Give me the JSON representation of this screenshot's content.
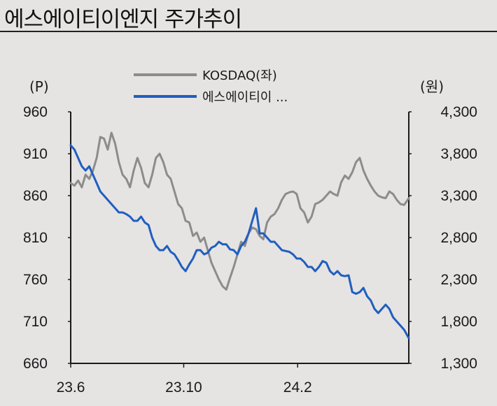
{
  "title": "에스에이티이엔지 주가추이",
  "chart_data": {
    "type": "line",
    "left_unit": "(P)",
    "right_unit": "(원)",
    "x_ticks": [
      "23.6",
      "23.10",
      "24.2"
    ],
    "left_ticks": [
      "960",
      "910",
      "860",
      "810",
      "760",
      "710",
      "660"
    ],
    "right_ticks": [
      "4,300",
      "3,800",
      "3,300",
      "2,800",
      "2,300",
      "1,800",
      "1,300"
    ],
    "left_range": [
      660,
      960
    ],
    "right_range": [
      1300,
      4300
    ],
    "x_range": [
      "2023-06-01",
      "2024-05-31"
    ],
    "x_tick_dates": [
      "2023-06-01",
      "2023-10-01",
      "2024-02-01"
    ],
    "legend_position": "top-center",
    "grid": false,
    "series": [
      {
        "name": "KOSDAQ(좌)",
        "axis": "left",
        "color": "#8c8c8c",
        "x": [
          "2023-06-01",
          "2023-06-05",
          "2023-06-09",
          "2023-06-13",
          "2023-06-17",
          "2023-06-21",
          "2023-06-25",
          "2023-06-29",
          "2023-07-03",
          "2023-07-07",
          "2023-07-11",
          "2023-07-15",
          "2023-07-19",
          "2023-07-23",
          "2023-07-27",
          "2023-07-31",
          "2023-08-04",
          "2023-08-08",
          "2023-08-12",
          "2023-08-16",
          "2023-08-20",
          "2023-08-24",
          "2023-08-28",
          "2023-09-01",
          "2023-09-05",
          "2023-09-09",
          "2023-09-13",
          "2023-09-17",
          "2023-09-21",
          "2023-09-25",
          "2023-09-29",
          "2023-10-03",
          "2023-10-07",
          "2023-10-11",
          "2023-10-15",
          "2023-10-19",
          "2023-10-23",
          "2023-10-27",
          "2023-10-31",
          "2023-11-04",
          "2023-11-08",
          "2023-11-12",
          "2023-11-16",
          "2023-11-20",
          "2023-11-24",
          "2023-11-28",
          "2023-12-02",
          "2023-12-06",
          "2023-12-10",
          "2023-12-14",
          "2023-12-18",
          "2023-12-22",
          "2023-12-26",
          "2023-12-30",
          "2024-01-03",
          "2024-01-07",
          "2024-01-11",
          "2024-01-15",
          "2024-01-19",
          "2024-01-23",
          "2024-01-27",
          "2024-01-31",
          "2024-02-04",
          "2024-02-08",
          "2024-02-12",
          "2024-02-16",
          "2024-02-20",
          "2024-02-24",
          "2024-02-28",
          "2024-03-03",
          "2024-03-07",
          "2024-03-11",
          "2024-03-15",
          "2024-03-19",
          "2024-03-23",
          "2024-03-27",
          "2024-03-31",
          "2024-04-04",
          "2024-04-08",
          "2024-04-12",
          "2024-04-16",
          "2024-04-20",
          "2024-04-24",
          "2024-04-28",
          "2024-05-02",
          "2024-05-06",
          "2024-05-10",
          "2024-05-14",
          "2024-05-18",
          "2024-05-22",
          "2024-05-26",
          "2024-05-31"
        ],
        "values": [
          875,
          872,
          878,
          870,
          885,
          880,
          890,
          905,
          930,
          928,
          915,
          935,
          922,
          900,
          885,
          880,
          870,
          890,
          905,
          893,
          875,
          870,
          885,
          905,
          910,
          900,
          885,
          880,
          865,
          850,
          845,
          830,
          828,
          812,
          816,
          805,
          810,
          795,
          780,
          770,
          760,
          752,
          748,
          762,
          775,
          790,
          805,
          800,
          815,
          822,
          820,
          812,
          808,
          828,
          835,
          838,
          845,
          855,
          862,
          864,
          865,
          862,
          845,
          840,
          828,
          835,
          850,
          852,
          855,
          860,
          865,
          862,
          860,
          876,
          884,
          880,
          888,
          900,
          905,
          890,
          880,
          872,
          865,
          860,
          858,
          857,
          865,
          862,
          855,
          850,
          849,
          857
        ]
      },
      {
        "name": "에스에이티이 ...",
        "axis": "right",
        "color": "#1f5fbf",
        "x": [
          "2023-06-01",
          "2023-06-05",
          "2023-06-09",
          "2023-06-13",
          "2023-06-17",
          "2023-06-21",
          "2023-06-25",
          "2023-06-29",
          "2023-07-03",
          "2023-07-07",
          "2023-07-11",
          "2023-07-15",
          "2023-07-19",
          "2023-07-23",
          "2023-07-27",
          "2023-07-31",
          "2023-08-04",
          "2023-08-08",
          "2023-08-12",
          "2023-08-16",
          "2023-08-20",
          "2023-08-24",
          "2023-08-28",
          "2023-09-01",
          "2023-09-05",
          "2023-09-09",
          "2023-09-13",
          "2023-09-17",
          "2023-09-21",
          "2023-09-25",
          "2023-09-29",
          "2023-10-03",
          "2023-10-07",
          "2023-10-11",
          "2023-10-15",
          "2023-10-19",
          "2023-10-23",
          "2023-10-27",
          "2023-10-31",
          "2023-11-04",
          "2023-11-08",
          "2023-11-12",
          "2023-11-16",
          "2023-11-20",
          "2023-11-24",
          "2023-11-28",
          "2023-12-02",
          "2023-12-06",
          "2023-12-10",
          "2023-12-14",
          "2023-12-18",
          "2023-12-22",
          "2023-12-26",
          "2023-12-30",
          "2024-01-03",
          "2024-01-07",
          "2024-01-11",
          "2024-01-15",
          "2024-01-19",
          "2024-01-23",
          "2024-01-27",
          "2024-01-31",
          "2024-02-04",
          "2024-02-08",
          "2024-02-12",
          "2024-02-16",
          "2024-02-20",
          "2024-02-24",
          "2024-02-28",
          "2024-03-03",
          "2024-03-07",
          "2024-03-11",
          "2024-03-15",
          "2024-03-19",
          "2024-03-23",
          "2024-03-27",
          "2024-03-31",
          "2024-04-04",
          "2024-04-08",
          "2024-04-12",
          "2024-04-16",
          "2024-04-20",
          "2024-04-24",
          "2024-04-28",
          "2024-05-02",
          "2024-05-06",
          "2024-05-10",
          "2024-05-14",
          "2024-05-18",
          "2024-05-22",
          "2024-05-26",
          "2024-05-31"
        ],
        "values": [
          3900,
          3850,
          3750,
          3650,
          3600,
          3650,
          3550,
          3450,
          3350,
          3300,
          3250,
          3200,
          3150,
          3100,
          3100,
          3080,
          3050,
          3000,
          3000,
          3050,
          2980,
          2950,
          2800,
          2700,
          2650,
          2650,
          2700,
          2630,
          2600,
          2530,
          2450,
          2400,
          2480,
          2550,
          2650,
          2650,
          2600,
          2620,
          2680,
          2700,
          2750,
          2720,
          2720,
          2660,
          2650,
          2600,
          2700,
          2750,
          2850,
          3000,
          3150,
          2850,
          2850,
          2800,
          2750,
          2750,
          2700,
          2650,
          2640,
          2630,
          2600,
          2550,
          2550,
          2510,
          2450,
          2450,
          2400,
          2450,
          2520,
          2500,
          2400,
          2360,
          2400,
          2350,
          2340,
          2350,
          2150,
          2130,
          2150,
          2200,
          2100,
          2050,
          1950,
          1900,
          1950,
          2000,
          1950,
          1850,
          1800,
          1750,
          1700,
          1600
        ]
      }
    ]
  }
}
